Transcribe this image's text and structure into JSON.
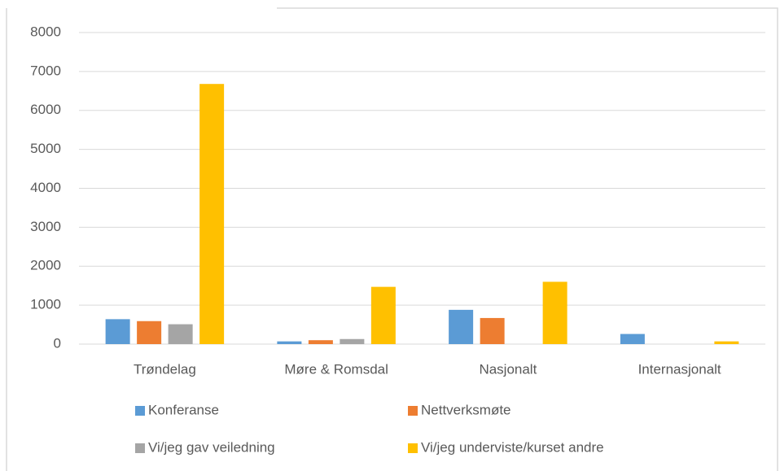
{
  "chart_data": {
    "type": "bar",
    "categories": [
      "Trøndelag",
      "Møre & Romsdal",
      "Nasjonalt",
      "Internasjonalt"
    ],
    "series": [
      {
        "name": "Konferanse",
        "color": "#5b9bd5",
        "values": [
          640,
          70,
          880,
          260
        ]
      },
      {
        "name": "Nettverksmøte",
        "color": "#ed7d31",
        "values": [
          590,
          100,
          670,
          0
        ]
      },
      {
        "name": "Vi/jeg gav veiledning",
        "color": "#a5a5a5",
        "values": [
          510,
          130,
          0,
          0
        ]
      },
      {
        "name": "Vi/jeg underviste/kurset andre",
        "color": "#ffc000",
        "values": [
          6680,
          1470,
          1600,
          70
        ]
      }
    ],
    "ylim": [
      0,
      8000
    ],
    "yticks": [
      0,
      1000,
      2000,
      3000,
      4000,
      5000,
      6000,
      7000,
      8000
    ],
    "grid": true
  }
}
